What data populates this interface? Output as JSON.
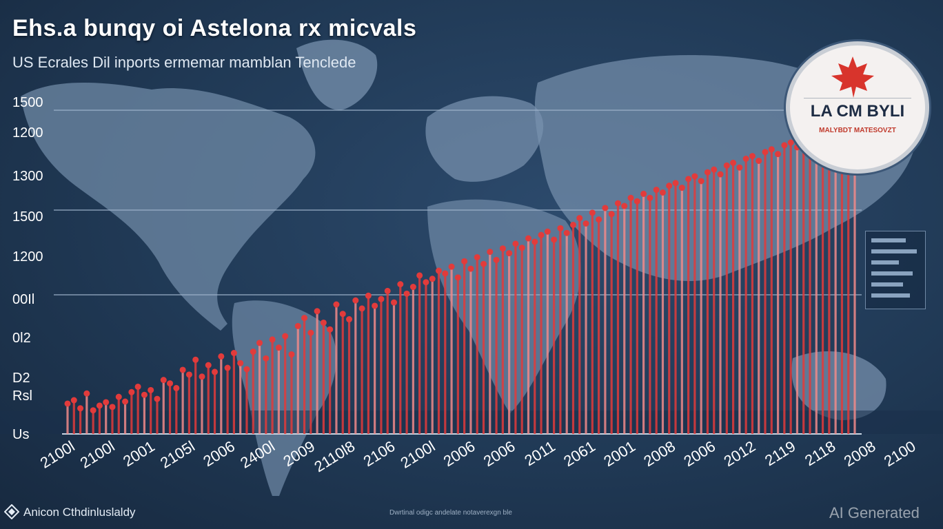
{
  "title": "Ehs.a bunqy oi Astelona rx micvals",
  "subtitle": "US Ecrales Dil inports ermemar mamblan Tenclede",
  "badge": {
    "text": "LA CM BYLI",
    "subtext": "MALYBDT MATESOVZT"
  },
  "footer": {
    "left": "Anicon Cthdinluslaldy",
    "middle": "Dwrtinal odigc andelate notaverexgn ble",
    "watermark": "AI Generated"
  },
  "colors": {
    "background": "#203955",
    "land": "#6f89a6",
    "bar": "#e23b3b",
    "bar_light": "#f08a8a",
    "grid": "#9fb4cc",
    "text": "#ffffff"
  },
  "icons": [
    "maple-leaf-icon",
    "ai-badge-icon"
  ],
  "chart_data": {
    "type": "bar",
    "title": "Ehs.a bunqy oi Astelona rx micvals",
    "subtitle": "US Ecrales Dil inports ermemar mamblan Tenclede",
    "ytick_labels": [
      "1500",
      "1200",
      "1300",
      "1500",
      "1200",
      "00Il",
      "0l2",
      "D2",
      "Rsl",
      "Us"
    ],
    "xtick_labels": [
      "2100l",
      "2100l",
      "2001",
      "2105l",
      "2006",
      "2400l",
      "2009",
      "2110l8",
      "2106",
      "2100l",
      "2006",
      "2006",
      "2011",
      "2061",
      "2001",
      "2008",
      "2006",
      "2012",
      "2119",
      "2118",
      "2008",
      "2100"
    ],
    "gridlines": [
      160,
      305,
      428
    ],
    "values": [
      45,
      50,
      38,
      60,
      35,
      42,
      47,
      40,
      55,
      48,
      62,
      70,
      58,
      65,
      52,
      80,
      75,
      68,
      95,
      88,
      110,
      85,
      102,
      92,
      115,
      98,
      120,
      105,
      96,
      122,
      135,
      112,
      140,
      128,
      145,
      118,
      160,
      172,
      150,
      182,
      165,
      155,
      192,
      178,
      170,
      198,
      186,
      205,
      190,
      200,
      212,
      195,
      222,
      208,
      218,
      235,
      225,
      230,
      242,
      238,
      248,
      232,
      256,
      245,
      262,
      252,
      270,
      258,
      275,
      268,
      282,
      276,
      290,
      285,
      295,
      300,
      288,
      305,
      298,
      310,
      320,
      312,
      328,
      318,
      335,
      326,
      342,
      338,
      350,
      345,
      356,
      350,
      362,
      358,
      368,
      372,
      365,
      378,
      382,
      375,
      388,
      392,
      385,
      398,
      402,
      395,
      408,
      412,
      405,
      418,
      422,
      415,
      428,
      432,
      425,
      438,
      442,
      435,
      448,
      452,
      455,
      460,
      448,
      465
    ]
  }
}
